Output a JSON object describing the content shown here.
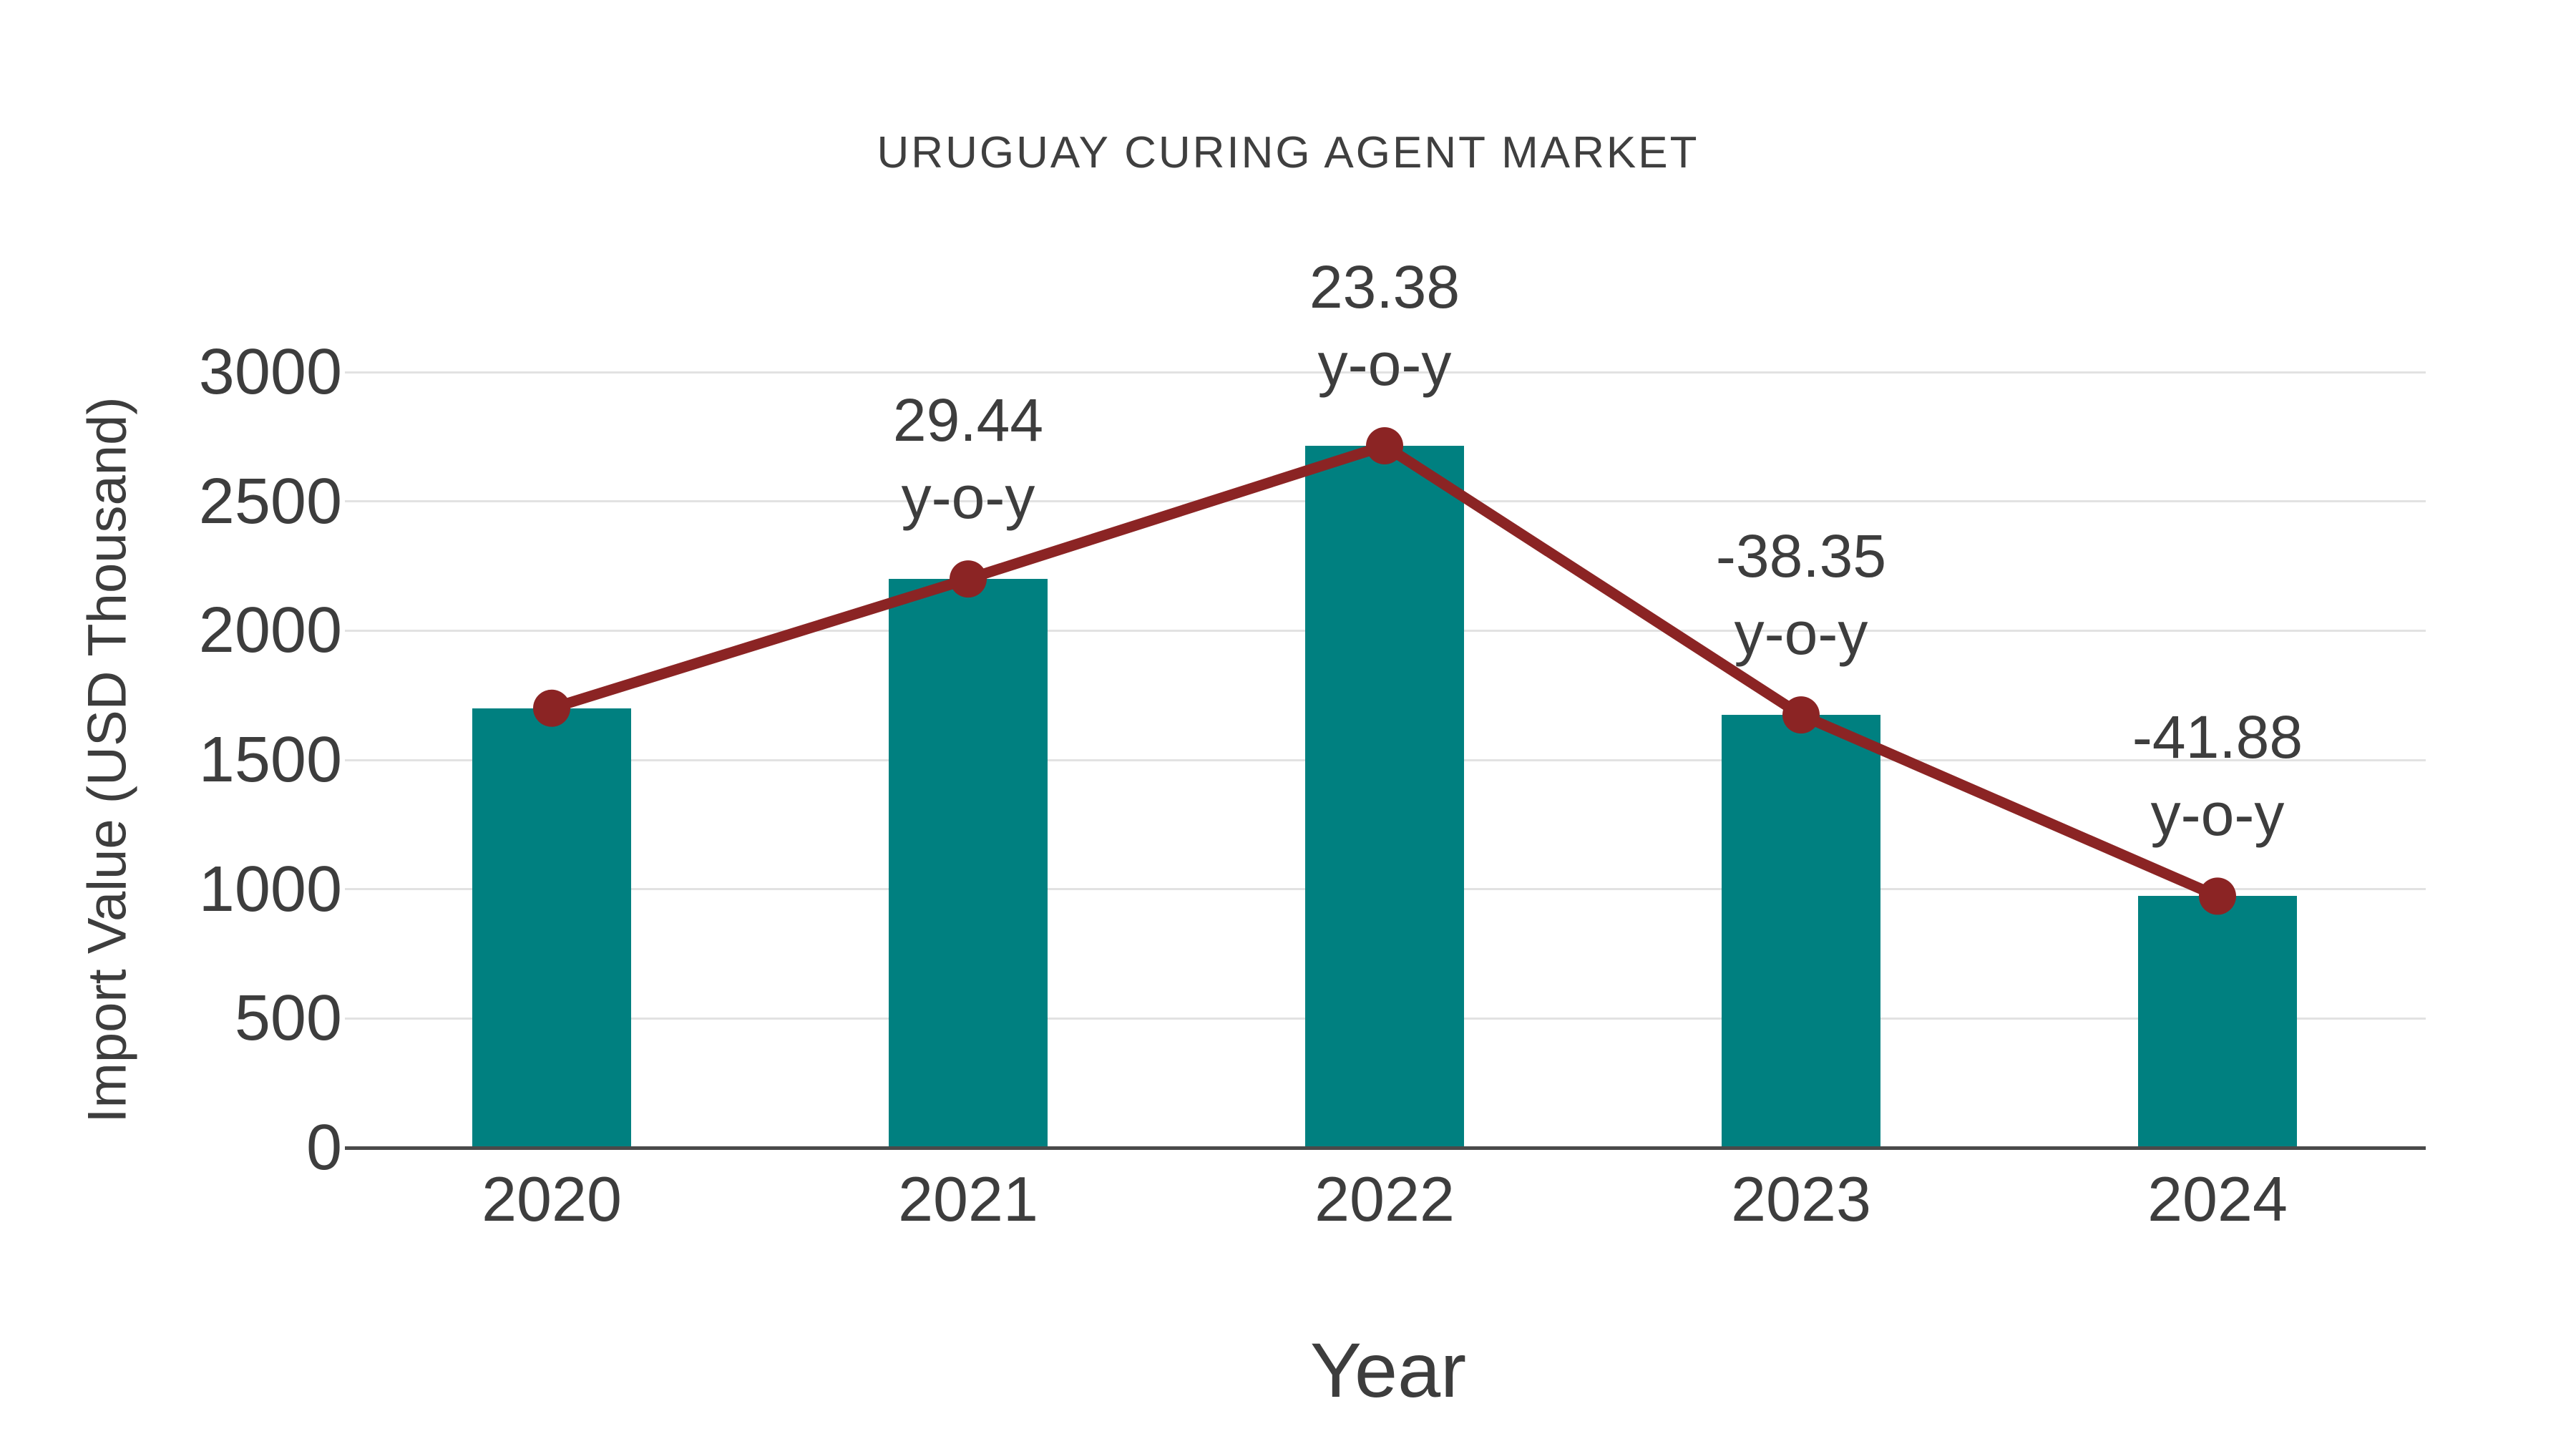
{
  "colors": {
    "background": "#ffffff",
    "bar": "#008080",
    "line": "#8B2424",
    "marker": "#8B2424",
    "text": "#3d3d3d",
    "title_text": "#3f3f3f",
    "grid": "#e2e2e2",
    "axis": "#4a4a4a"
  },
  "chart_data": {
    "type": "bar",
    "title": "URUGUAY CURING AGENT MARKET",
    "xlabel": "Year",
    "ylabel": "Import Value (USD Thousand)",
    "categories": [
      "2020",
      "2021",
      "2022",
      "2023",
      "2024"
    ],
    "series": [
      {
        "name": "Import Value (USD Thousand)",
        "type": "bar",
        "color": "#008080",
        "values": [
          1700,
          2200,
          2715,
          1674,
          973
        ]
      },
      {
        "name": "y-o-y change (%)",
        "type": "line",
        "color": "#8B2424",
        "plotted_at_bar_tops": true,
        "values": [
          null,
          29.44,
          23.38,
          -38.35,
          -41.88
        ]
      }
    ],
    "annotations": [
      {
        "category": "2021",
        "line1": "29.44",
        "line2": "y-o-y"
      },
      {
        "category": "2022",
        "line1": "23.38",
        "line2": "y-o-y"
      },
      {
        "category": "2023",
        "line1": "-38.35",
        "line2": "y-o-y"
      },
      {
        "category": "2024",
        "line1": "-41.88",
        "line2": "y-o-y"
      }
    ],
    "yticks": [
      0,
      500,
      1000,
      1500,
      2000,
      2500,
      3000
    ],
    "ylim": [
      0,
      3000
    ],
    "grid": "horizontal-only",
    "legend": "none"
  }
}
